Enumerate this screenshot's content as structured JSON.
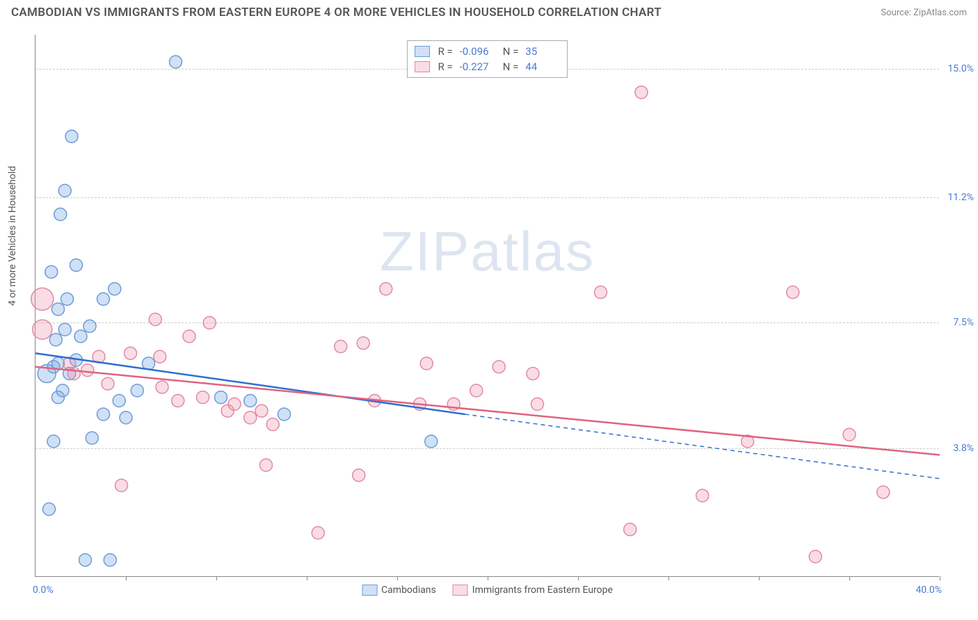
{
  "header": {
    "title": "CAMBODIAN VS IMMIGRANTS FROM EASTERN EUROPE 4 OR MORE VEHICLES IN HOUSEHOLD CORRELATION CHART",
    "source": "Source: ZipAtlas.com"
  },
  "chart": {
    "type": "scatter",
    "ylabel": "4 or more Vehicles in Household",
    "watermark": "ZIPatlas",
    "xlim": [
      0,
      40
    ],
    "ylim": [
      0,
      16
    ],
    "x_axis": {
      "min_label": "0.0%",
      "max_label": "40.0%",
      "label_color": "#4a7bd4",
      "tick_positions_pct": [
        0,
        10,
        20,
        30,
        40,
        50,
        60,
        70,
        80,
        90,
        100
      ]
    },
    "y_gridlines": [
      {
        "value": 3.8,
        "label": "3.8%"
      },
      {
        "value": 7.5,
        "label": "7.5%"
      },
      {
        "value": 11.2,
        "label": "11.2%"
      },
      {
        "value": 15.0,
        "label": "15.0%"
      }
    ],
    "background_color": "#ffffff",
    "grid_color": "#cccccc",
    "axis_color": "#888888",
    "series": [
      {
        "name": "Cambodians",
        "color_fill": "rgba(120,165,225,0.35)",
        "color_stroke": "#6b9bd8",
        "line_color": "#2e6fd0",
        "marker_radius": 9,
        "R": "-0.096",
        "N": "35",
        "trend": {
          "x1": 0,
          "y1": 6.6,
          "x2": 19,
          "y2": 4.8,
          "dash_to_x": 40,
          "dash_to_y": 2.9
        },
        "points": [
          {
            "x": 0.6,
            "y": 2.0
          },
          {
            "x": 0.8,
            "y": 4.0
          },
          {
            "x": 1.0,
            "y": 5.3
          },
          {
            "x": 1.2,
            "y": 5.5
          },
          {
            "x": 0.5,
            "y": 6.0,
            "r": 13
          },
          {
            "x": 0.8,
            "y": 6.2
          },
          {
            "x": 1.0,
            "y": 6.3
          },
          {
            "x": 1.5,
            "y": 6.0
          },
          {
            "x": 1.8,
            "y": 6.4
          },
          {
            "x": 0.9,
            "y": 7.0
          },
          {
            "x": 1.3,
            "y": 7.3
          },
          {
            "x": 2.0,
            "y": 7.1
          },
          {
            "x": 2.4,
            "y": 7.4
          },
          {
            "x": 1.0,
            "y": 7.9
          },
          {
            "x": 1.4,
            "y": 8.2
          },
          {
            "x": 3.0,
            "y": 8.2
          },
          {
            "x": 3.5,
            "y": 8.5
          },
          {
            "x": 0.7,
            "y": 9.0
          },
          {
            "x": 1.8,
            "y": 9.2
          },
          {
            "x": 1.1,
            "y": 10.7
          },
          {
            "x": 1.3,
            "y": 11.4
          },
          {
            "x": 1.6,
            "y": 13.0
          },
          {
            "x": 6.2,
            "y": 15.2
          },
          {
            "x": 2.2,
            "y": 0.5
          },
          {
            "x": 3.3,
            "y": 0.5
          },
          {
            "x": 2.5,
            "y": 4.1
          },
          {
            "x": 3.0,
            "y": 4.8
          },
          {
            "x": 3.7,
            "y": 5.2
          },
          {
            "x": 4.5,
            "y": 5.5
          },
          {
            "x": 4.0,
            "y": 4.7
          },
          {
            "x": 5.0,
            "y": 6.3
          },
          {
            "x": 8.2,
            "y": 5.3
          },
          {
            "x": 9.5,
            "y": 5.2
          },
          {
            "x": 11.0,
            "y": 4.8
          },
          {
            "x": 17.5,
            "y": 4.0
          }
        ]
      },
      {
        "name": "Immigrants from Eastern Europe",
        "color_fill": "rgba(235,140,165,0.3)",
        "color_stroke": "#e08aa2",
        "line_color": "#e0637f",
        "marker_radius": 9,
        "R": "-0.227",
        "N": "44",
        "trend": {
          "x1": 0,
          "y1": 6.2,
          "x2": 40,
          "y2": 3.6
        },
        "points": [
          {
            "x": 0.3,
            "y": 8.2,
            "r": 16
          },
          {
            "x": 0.3,
            "y": 7.3,
            "r": 14
          },
          {
            "x": 1.5,
            "y": 6.3
          },
          {
            "x": 1.7,
            "y": 6.0
          },
          {
            "x": 2.3,
            "y": 6.1
          },
          {
            "x": 2.8,
            "y": 6.5
          },
          {
            "x": 3.2,
            "y": 5.7
          },
          {
            "x": 3.8,
            "y": 2.7
          },
          {
            "x": 4.2,
            "y": 6.6
          },
          {
            "x": 5.3,
            "y": 7.6
          },
          {
            "x": 5.5,
            "y": 6.5
          },
          {
            "x": 5.6,
            "y": 5.6
          },
          {
            "x": 6.3,
            "y": 5.2
          },
          {
            "x": 6.8,
            "y": 7.1
          },
          {
            "x": 7.4,
            "y": 5.3
          },
          {
            "x": 7.7,
            "y": 7.5
          },
          {
            "x": 8.5,
            "y": 4.9
          },
          {
            "x": 8.8,
            "y": 5.1
          },
          {
            "x": 9.5,
            "y": 4.7
          },
          {
            "x": 10.0,
            "y": 4.9
          },
          {
            "x": 10.2,
            "y": 3.3
          },
          {
            "x": 10.5,
            "y": 4.5
          },
          {
            "x": 12.5,
            "y": 1.3
          },
          {
            "x": 13.5,
            "y": 6.8
          },
          {
            "x": 14.3,
            "y": 3.0
          },
          {
            "x": 14.5,
            "y": 6.9
          },
          {
            "x": 15.0,
            "y": 5.2
          },
          {
            "x": 15.5,
            "y": 8.5
          },
          {
            "x": 17.0,
            "y": 5.1
          },
          {
            "x": 17.3,
            "y": 6.3
          },
          {
            "x": 18.5,
            "y": 5.1
          },
          {
            "x": 19.5,
            "y": 5.5
          },
          {
            "x": 20.5,
            "y": 6.2
          },
          {
            "x": 22.0,
            "y": 6.0
          },
          {
            "x": 22.2,
            "y": 5.1
          },
          {
            "x": 25.0,
            "y": 8.4
          },
          {
            "x": 26.3,
            "y": 1.4
          },
          {
            "x": 26.8,
            "y": 14.3
          },
          {
            "x": 29.5,
            "y": 2.4
          },
          {
            "x": 31.5,
            "y": 4.0
          },
          {
            "x": 33.5,
            "y": 8.4
          },
          {
            "x": 34.5,
            "y": 0.6
          },
          {
            "x": 36.0,
            "y": 4.2
          },
          {
            "x": 37.5,
            "y": 2.5
          }
        ]
      }
    ]
  }
}
